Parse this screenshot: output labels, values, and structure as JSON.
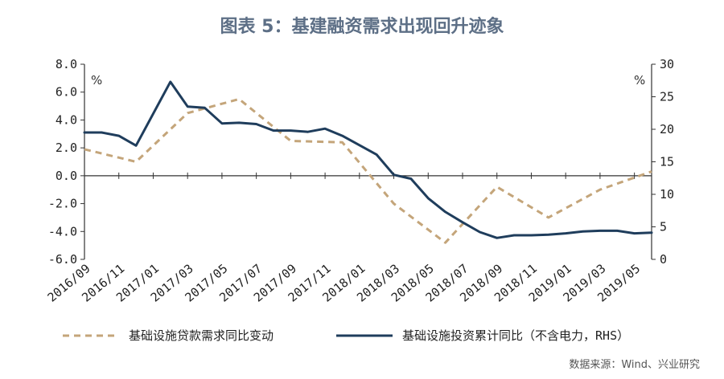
{
  "chart_data": {
    "type": "line",
    "title": "图表 5：基建融资需求出现回升迹象",
    "left_unit": "%",
    "right_unit": "%",
    "ylim_left": [
      -6,
      8
    ],
    "ylim_right": [
      0,
      30
    ],
    "left_ticks": [
      "8.0",
      "6.0",
      "4.0",
      "2.0",
      "0.0",
      "-2.0",
      "-4.0",
      "-6.0"
    ],
    "right_ticks": [
      "30",
      "25",
      "20",
      "15",
      "10",
      "5",
      "0"
    ],
    "x_tick_labels": [
      "2016/09",
      "2016/11",
      "2017/01",
      "2017/03",
      "2017/05",
      "2017/07",
      "2017/09",
      "2017/11",
      "2018/01",
      "2018/03",
      "2018/05",
      "2018/07",
      "2018/09",
      "2018/11",
      "2019/01",
      "2019/03",
      "2019/05"
    ],
    "months": [
      "2016/09",
      "2016/10",
      "2016/11",
      "2016/12",
      "2017/01",
      "2017/02",
      "2017/03",
      "2017/04",
      "2017/05",
      "2017/06",
      "2017/07",
      "2017/08",
      "2017/09",
      "2017/10",
      "2017/11",
      "2017/12",
      "2018/01",
      "2018/02",
      "2018/03",
      "2018/04",
      "2018/05",
      "2018/06",
      "2018/07",
      "2018/08",
      "2018/09",
      "2018/10",
      "2018/11",
      "2018/12",
      "2019/01",
      "2019/02",
      "2019/03",
      "2019/04",
      "2019/05",
      "2019/06"
    ],
    "series": [
      {
        "name": "基础设施贷款需求同比变动",
        "axis": "left",
        "style": "dashed",
        "color": "#c4a57a",
        "points": [
          [
            "2016/09",
            1.9
          ],
          [
            "2016/12",
            1.0
          ],
          [
            "2017/03",
            4.5
          ],
          [
            "2017/06",
            5.5
          ],
          [
            "2017/09",
            2.5
          ],
          [
            "2017/12",
            2.4
          ],
          [
            "2018/03",
            -2.0
          ],
          [
            "2018/06",
            -4.8
          ],
          [
            "2018/09",
            -0.8
          ],
          [
            "2018/12",
            -3.0
          ],
          [
            "2019/03",
            -1.0
          ],
          [
            "2019/06",
            0.3
          ]
        ]
      },
      {
        "name": "基础设施投资累计同比（不含电力，RHS）",
        "axis": "right",
        "style": "solid",
        "color": "#1f3d5c",
        "points": [
          [
            "2016/09",
            19.5
          ],
          [
            "2016/10",
            19.5
          ],
          [
            "2016/11",
            19.0
          ],
          [
            "2016/12",
            17.5
          ],
          [
            "2017/02",
            27.3
          ],
          [
            "2017/03",
            23.5
          ],
          [
            "2017/04",
            23.3
          ],
          [
            "2017/05",
            20.9
          ],
          [
            "2017/06",
            21.0
          ],
          [
            "2017/07",
            20.8
          ],
          [
            "2017/08",
            19.8
          ],
          [
            "2017/09",
            19.8
          ],
          [
            "2017/10",
            19.6
          ],
          [
            "2017/11",
            20.1
          ],
          [
            "2017/12",
            19.0
          ],
          [
            "2018/02",
            16.1
          ],
          [
            "2018/03",
            13.0
          ],
          [
            "2018/04",
            12.4
          ],
          [
            "2018/05",
            9.4
          ],
          [
            "2018/06",
            7.3
          ],
          [
            "2018/07",
            5.7
          ],
          [
            "2018/08",
            4.2
          ],
          [
            "2018/09",
            3.3
          ],
          [
            "2018/10",
            3.7
          ],
          [
            "2018/11",
            3.7
          ],
          [
            "2018/12",
            3.8
          ],
          [
            "2019/01",
            4.0
          ],
          [
            "2019/02",
            4.3
          ],
          [
            "2019/03",
            4.4
          ],
          [
            "2019/04",
            4.4
          ],
          [
            "2019/05",
            4.0
          ],
          [
            "2019/06",
            4.1
          ]
        ]
      }
    ],
    "legend": [
      "基础设施贷款需求同比变动",
      "基础设施投资累计同比（不含电力，RHS）"
    ],
    "source": "数据来源：Wind、兴业研究"
  }
}
